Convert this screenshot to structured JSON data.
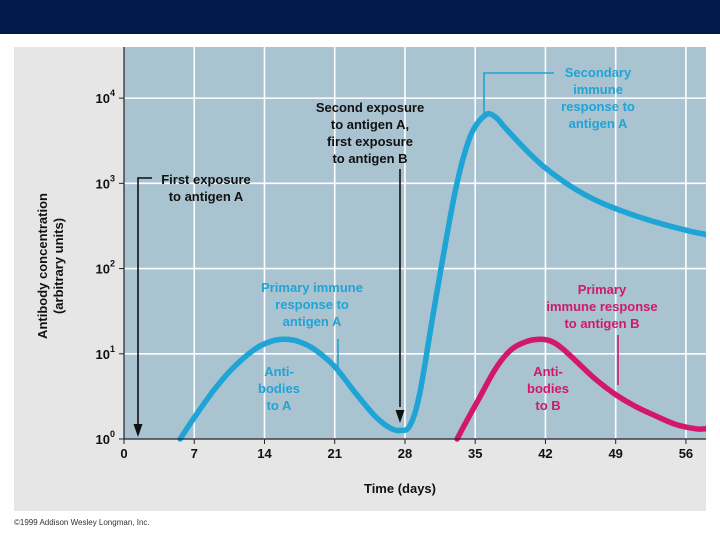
{
  "colors": {
    "header_bar": "#001a4d",
    "plot_background": "#a9c3d1",
    "antigen_a": "#1fa4d6",
    "antigen_b": "#d1186a",
    "annotation_text": "#111111",
    "primary_label_a": "#1fa4d6",
    "label_b": "#d1186a"
  },
  "chart_data": {
    "type": "line",
    "title": "",
    "xlabel": "Time (days)",
    "ylabel": [
      "Antibody concentration",
      "(arbitrary units)"
    ],
    "xlim": [
      0,
      58
    ],
    "ylim_log10": [
      0,
      4.6
    ],
    "y_scale": "log",
    "grid": true,
    "x_ticks": [
      "0",
      "7",
      "14",
      "21",
      "28",
      "35",
      "42",
      "49",
      "56"
    ],
    "x_tick_values": [
      0,
      7,
      14,
      21,
      28,
      35,
      42,
      49,
      56
    ],
    "y_ticks": [
      {
        "base": "10",
        "exp": "0",
        "log10": 0
      },
      {
        "base": "10",
        "exp": "1",
        "log10": 1
      },
      {
        "base": "10",
        "exp": "2",
        "log10": 2
      },
      {
        "base": "10",
        "exp": "3",
        "log10": 3
      },
      {
        "base": "10",
        "exp": "4",
        "log10": 4
      }
    ],
    "series": [
      {
        "name": "Antibodies to A",
        "color": "#1fa4d6",
        "x": [
          5.6,
          7,
          9,
          11,
          13,
          14.5,
          16,
          17.5,
          19,
          21,
          23,
          25,
          26.5,
          27.5,
          28.5,
          29.5,
          31,
          33,
          34.5,
          36,
          37,
          38,
          40,
          42,
          45,
          48,
          52,
          56,
          58
        ],
        "log10y": [
          0,
          0.25,
          0.58,
          0.85,
          1.05,
          1.14,
          1.17,
          1.14,
          1.05,
          0.85,
          0.55,
          0.27,
          0.13,
          0.1,
          0.16,
          0.55,
          1.6,
          2.9,
          3.55,
          3.8,
          3.78,
          3.65,
          3.4,
          3.18,
          2.93,
          2.75,
          2.58,
          2.45,
          2.4
        ]
      },
      {
        "name": "Antibodies to B",
        "color": "#d1186a",
        "x": [
          33.2,
          34,
          35.5,
          37,
          38.5,
          40,
          41.5,
          42.5,
          43.5,
          45,
          47,
          49,
          51,
          53,
          55,
          57,
          58
        ],
        "log10y": [
          0,
          0.18,
          0.5,
          0.82,
          1.04,
          1.14,
          1.17,
          1.15,
          1.08,
          0.92,
          0.7,
          0.52,
          0.38,
          0.27,
          0.17,
          0.12,
          0.12
        ]
      }
    ],
    "annotations": {
      "first_exposure": {
        "lines": [
          "First exposure",
          "to antigen A"
        ],
        "day": 1.4
      },
      "second_exposure": {
        "lines": [
          "Second exposure",
          "to antigen A,",
          "first exposure",
          "to antigen B"
        ],
        "day": 27.8
      },
      "secondary_response": {
        "lines": [
          "Secondary",
          "immune",
          "response to",
          "antigen A"
        ]
      },
      "primary_response_a": {
        "lines": [
          "Primary immune",
          "response to",
          "antigen A"
        ]
      },
      "primary_response_b": {
        "lines": [
          "Primary",
          "immune response",
          "to antigen B"
        ]
      },
      "antibodies_a": {
        "lines": [
          "Anti-",
          "bodies",
          "to A"
        ]
      },
      "antibodies_b": {
        "lines": [
          "Anti-",
          "bodies",
          "to B"
        ]
      }
    }
  },
  "footer": {
    "copyright": "©1999 Addison Wesley Longman, Inc."
  }
}
